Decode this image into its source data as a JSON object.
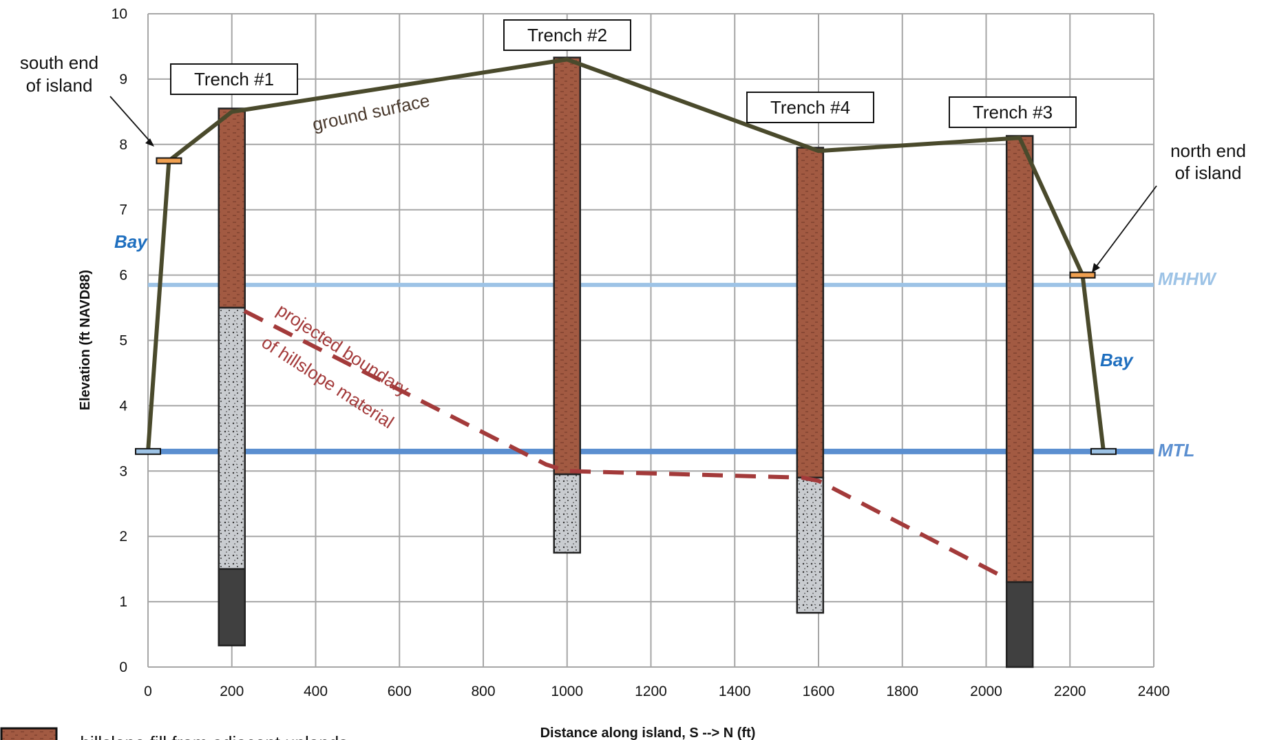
{
  "colors": {
    "ground": "#4a4a2c",
    "fill": "#a25a42",
    "gravel": "#c9ccd0",
    "dark": "#404040",
    "mhhw": "#9dc3e6",
    "mtl": "#5b8fd0",
    "bay_text": "#1f6fbf",
    "boundary": "#a33a3a",
    "marker": "#f0a050",
    "marker_mtl": "#9dc3e6",
    "grid": "#a6a6a6"
  },
  "chart_data": {
    "type": "line",
    "xlabel": "Distance along island, S --> N (ft)",
    "ylabel": "Elevation (ft NAVD88)",
    "xlim": [
      0,
      2400
    ],
    "ylim": [
      0,
      10
    ],
    "x_ticks": [
      "0",
      "200",
      "400",
      "600",
      "800",
      "1000",
      "1200",
      "1400",
      "1600",
      "1800",
      "2000",
      "2200",
      "2400"
    ],
    "y_ticks": [
      "0",
      "1",
      "2",
      "3",
      "4",
      "5",
      "6",
      "7",
      "8",
      "9",
      "10"
    ],
    "series": [
      {
        "name": "ground surface",
        "x": [
          0,
          50,
          200,
          1000,
          1600,
          2080,
          2230,
          2280
        ],
        "y": [
          3.3,
          7.75,
          8.5,
          9.3,
          7.9,
          8.1,
          6.0,
          3.3
        ]
      },
      {
        "name": "projected boundary of hillslope material",
        "x": [
          230,
          950,
          1000,
          1560,
          1600,
          2050
        ],
        "y": [
          5.45,
          3.1,
          3.0,
          2.9,
          2.85,
          1.35
        ]
      }
    ],
    "reference_lines": [
      {
        "name": "MHHW",
        "y": 5.85
      },
      {
        "name": "MTL",
        "y": 3.3
      }
    ],
    "trenches": [
      {
        "name": "Trench #1",
        "x": 200,
        "layers": [
          {
            "type": "fill",
            "top": 8.55,
            "bottom": 5.5
          },
          {
            "type": "gravel",
            "top": 5.5,
            "bottom": 1.5
          },
          {
            "type": "dark",
            "top": 1.5,
            "bottom": 0.33
          }
        ]
      },
      {
        "name": "Trench #2",
        "x": 1000,
        "layers": [
          {
            "type": "fill",
            "top": 9.33,
            "bottom": 2.95
          },
          {
            "type": "gravel",
            "top": 2.95,
            "bottom": 1.75
          }
        ]
      },
      {
        "name": "Trench #4",
        "x": 1580,
        "layers": [
          {
            "type": "fill",
            "top": 7.95,
            "bottom": 2.9
          },
          {
            "type": "gravel",
            "top": 2.9,
            "bottom": 0.83
          }
        ]
      },
      {
        "name": "Trench #3",
        "x": 2080,
        "layers": [
          {
            "type": "fill",
            "top": 8.13,
            "bottom": 1.3
          },
          {
            "type": "dark",
            "top": 1.3,
            "bottom": 0.0
          }
        ]
      }
    ],
    "markers": [
      {
        "x": 50,
        "y": 7.75,
        "kind": "island-end"
      },
      {
        "x": 2230,
        "y": 6.0,
        "kind": "island-end"
      },
      {
        "x": 0,
        "y": 3.3,
        "kind": "mtl"
      },
      {
        "x": 2280,
        "y": 3.3,
        "kind": "mtl"
      }
    ],
    "annotations": {
      "south_end": [
        "south end",
        "of island"
      ],
      "north_end": [
        "north end",
        "of island"
      ],
      "ground_surface": "ground surface",
      "boundary": [
        "projected boundary",
        "of hillslope material"
      ],
      "bay": "Bay",
      "mhhw": "MHHW",
      "mtl": "MTL",
      "legend_fill": "= hillslope fill from adjacent uplands"
    }
  }
}
